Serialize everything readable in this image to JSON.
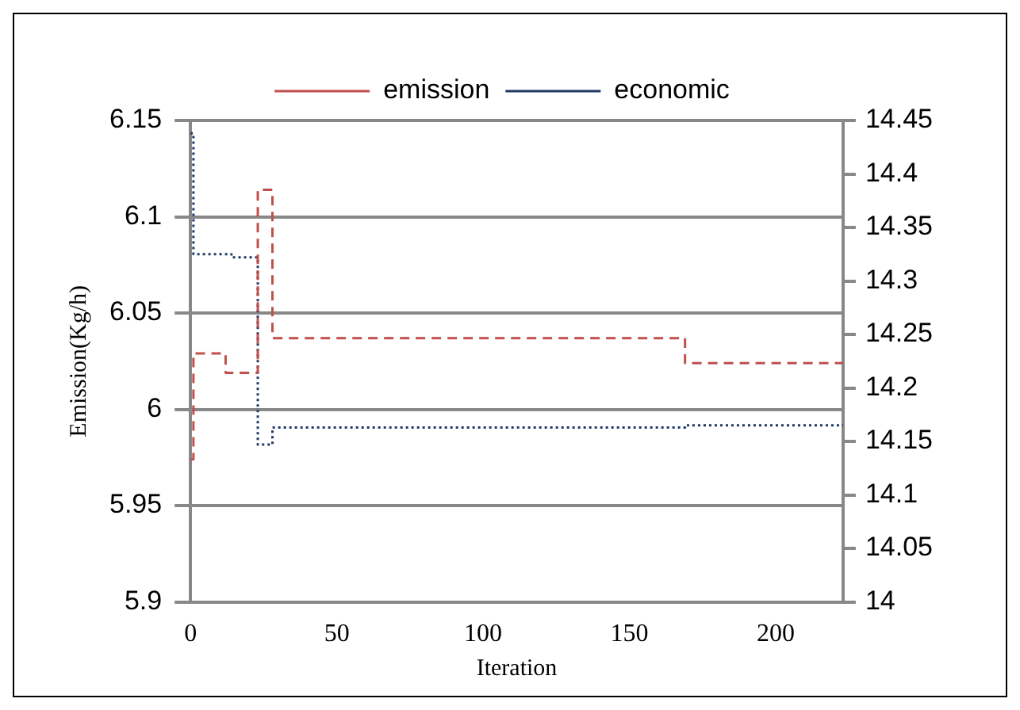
{
  "chart_data": {
    "type": "step",
    "xlabel": "Iteration",
    "ylabel": "Emission(Kg/h)",
    "xlim": [
      0,
      223
    ],
    "xticks": [
      0,
      50,
      100,
      150,
      200
    ],
    "ylim": [
      5.9,
      6.15
    ],
    "yticks": [
      5.9,
      5.95,
      6,
      6.05,
      6.1,
      6.15
    ],
    "y2lim": [
      14,
      14.45
    ],
    "y2ticks": [
      14,
      14.05,
      14.1,
      14.15,
      14.2,
      14.25,
      14.3,
      14.35,
      14.4,
      14.45
    ],
    "grid": "y",
    "legend": "top",
    "marker": "none",
    "series": [
      {
        "name": "emission",
        "color": "#c0504d",
        "line_style": "dashed",
        "x": [
          0,
          1,
          12,
          23,
          28,
          169,
          223
        ],
        "values": [
          5.974,
          6.029,
          6.019,
          6.114,
          6.037,
          6.024,
          6.024
        ]
      },
      {
        "name": "economic",
        "color": "#1f3864",
        "line_style": "dotted",
        "axis": "y2",
        "x": [
          0,
          1,
          14,
          23,
          28,
          169,
          223
        ],
        "values": [
          14.438,
          14.325,
          14.322,
          14.147,
          14.163,
          14.165,
          14.165
        ]
      }
    ]
  }
}
